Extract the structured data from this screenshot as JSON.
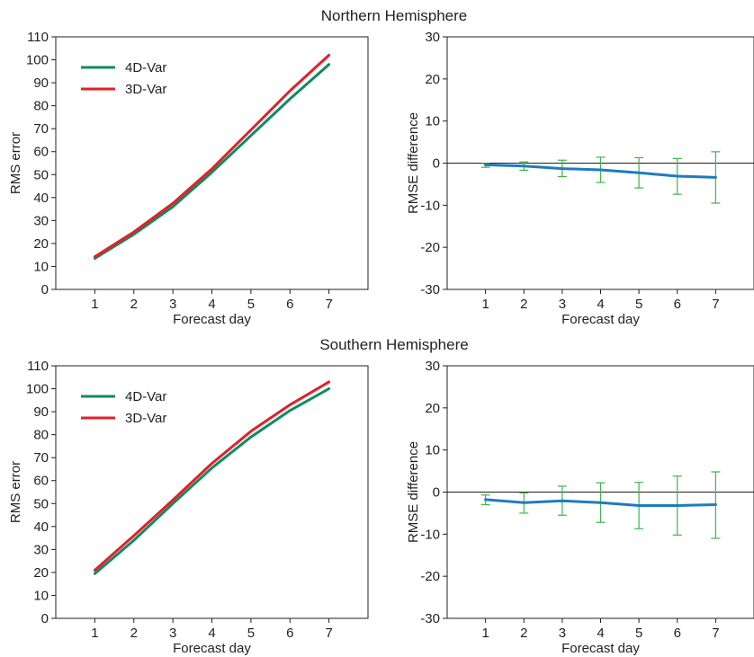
{
  "figure": {
    "nh_title": "Northern Hemisphere",
    "sh_title": "Southern Hemisphere"
  },
  "colors": {
    "4dvar": "#108a62",
    "3dvar": "#e32028",
    "difference": "#1f7bbf",
    "errorbar": "#3db54a",
    "axis": "#231f20"
  },
  "chart_data": [
    {
      "id": "nh_rms",
      "panel": "Northern Hemisphere",
      "type": "line",
      "x": [
        1,
        2,
        3,
        4,
        5,
        6,
        7
      ],
      "xticks": [
        "1",
        "2",
        "3",
        "4",
        "5",
        "6",
        "7"
      ],
      "xlim": [
        0,
        8
      ],
      "ylim": [
        0,
        110
      ],
      "yticks": [
        0,
        10,
        20,
        30,
        40,
        50,
        60,
        70,
        80,
        90,
        100,
        110
      ],
      "xlabel": "Forecast day",
      "ylabel": "RMS error",
      "legend_position": "top-left",
      "series": [
        {
          "name": "4D-Var",
          "color_key": "4dvar",
          "values": [
            13.5,
            24,
            36,
            51,
            67,
            83,
            98
          ]
        },
        {
          "name": "3D-Var",
          "color_key": "3dvar",
          "values": [
            14.2,
            25,
            37.5,
            52.5,
            69.5,
            86.5,
            102
          ]
        }
      ]
    },
    {
      "id": "nh_diff",
      "panel": "Northern Hemisphere",
      "type": "line",
      "x": [
        1,
        2,
        3,
        4,
        5,
        6,
        7
      ],
      "xticks": [
        "1",
        "2",
        "3",
        "4",
        "5",
        "6",
        "7"
      ],
      "xlim": [
        0,
        8
      ],
      "ylim": [
        -30,
        30
      ],
      "yticks": [
        -30,
        -20,
        -10,
        0,
        10,
        20,
        30
      ],
      "xlabel": "Forecast day",
      "ylabel": "RMSE difference",
      "zero_line": true,
      "series": [
        {
          "name": "",
          "color_key": "difference",
          "values": [
            -0.4,
            -0.7,
            -1.3,
            -1.6,
            -2.3,
            -3.1,
            -3.4
          ],
          "error_low": [
            -1.0,
            -1.7,
            -3.2,
            -4.6,
            -5.9,
            -7.4,
            -9.5
          ],
          "error_high": [
            -0.1,
            0.3,
            0.7,
            1.4,
            1.3,
            1.1,
            2.7
          ]
        }
      ]
    },
    {
      "id": "sh_rms",
      "panel": "Southern Hemisphere",
      "type": "line",
      "x": [
        1,
        2,
        3,
        4,
        5,
        6,
        7
      ],
      "xticks": [
        "1",
        "2",
        "3",
        "4",
        "5",
        "6",
        "7"
      ],
      "xlim": [
        0,
        8
      ],
      "ylim": [
        0,
        110
      ],
      "yticks": [
        0,
        10,
        20,
        30,
        40,
        50,
        60,
        70,
        80,
        90,
        100,
        110
      ],
      "xlabel": "Forecast day",
      "ylabel": "RMS error",
      "legend_position": "top-left",
      "series": [
        {
          "name": "4D-Var",
          "color_key": "4dvar",
          "values": [
            19.5,
            34,
            50,
            65.5,
            79,
            90.5,
            100
          ]
        },
        {
          "name": "3D-Var",
          "color_key": "3dvar",
          "values": [
            21,
            36,
            51.5,
            67.5,
            81.5,
            93,
            103
          ]
        }
      ]
    },
    {
      "id": "sh_diff",
      "panel": "Southern Hemisphere",
      "type": "line",
      "x": [
        1,
        2,
        3,
        4,
        5,
        6,
        7
      ],
      "xticks": [
        "1",
        "2",
        "3",
        "4",
        "5",
        "6",
        "7"
      ],
      "xlim": [
        0,
        8
      ],
      "ylim": [
        -30,
        30
      ],
      "yticks": [
        -30,
        -20,
        -10,
        0,
        10,
        20,
        30
      ],
      "xlabel": "Forecast day",
      "ylabel": "RMSE difference",
      "zero_line": true,
      "series": [
        {
          "name": "",
          "color_key": "difference",
          "values": [
            -1.8,
            -2.5,
            -2.1,
            -2.5,
            -3.2,
            -3.2,
            -3.0
          ],
          "error_low": [
            -3.0,
            -5.0,
            -5.5,
            -7.2,
            -8.7,
            -10.2,
            -11.0
          ],
          "error_high": [
            -0.7,
            -0.2,
            1.4,
            2.2,
            2.3,
            3.8,
            4.8
          ]
        }
      ]
    }
  ]
}
